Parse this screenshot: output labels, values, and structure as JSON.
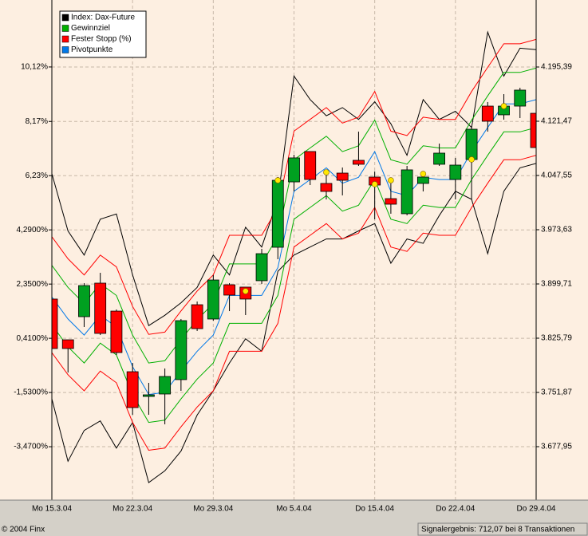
{
  "chart_data": {
    "type": "candlestick",
    "categories": [
      "Mo 15.3.04",
      null,
      null,
      null,
      null,
      "Mo 22.3.04",
      null,
      null,
      null,
      null,
      "Mo 29.3.04",
      null,
      null,
      null,
      null,
      "Mo 5.4.04",
      null,
      null,
      null,
      null,
      "Do 15.4.04",
      null,
      null,
      null,
      null,
      "Do 22.4.04",
      null,
      null,
      null,
      null,
      "Do 29.4.04"
    ],
    "ylim": [
      -5.381,
      12.516
    ],
    "yticks": [
      {
        "value": 10.12,
        "label": "10,12%"
      },
      {
        "value": 8.17,
        "label": "8,17%"
      },
      {
        "value": 6.23,
        "label": "6,23%"
      },
      {
        "value": 4.29,
        "label": "4,2900%"
      },
      {
        "value": 2.35,
        "label": "2,3500%"
      },
      {
        "value": 0.41,
        "label": "0,4100%"
      },
      {
        "value": -1.53,
        "label": "-1,5300%"
      },
      {
        "value": -3.47,
        "label": "-3,4700%"
      }
    ],
    "y2lim": [
      3605.1,
      4286.7
    ],
    "y2ticks": [
      {
        "value": 4195.39,
        "label": "4.195,39"
      },
      {
        "value": 4121.47,
        "label": "4.121,47"
      },
      {
        "value": 4047.55,
        "label": "4.047,55"
      },
      {
        "value": 3973.63,
        "label": "3.973,63"
      },
      {
        "value": 3899.71,
        "label": "3.899,71"
      },
      {
        "value": 3825.79,
        "label": "3.825,79"
      },
      {
        "value": 3751.87,
        "label": "3.751,87"
      },
      {
        "value": 3677.95,
        "label": "3.677,95"
      }
    ],
    "grid": true,
    "legend": "top-left",
    "ohlc": {
      "axis": "y2",
      "up_color": "#00a020",
      "down_color": "#ff0000",
      "open": [
        3879.1,
        3823.6,
        3855.1,
        3900.8,
        3862.7,
        3780.1,
        3746.4,
        3749.7,
        3769.3,
        3871.4,
        3851.9,
        3898.6,
        3895.4,
        3904.1,
        3949.7,
        4038.8,
        4080.2,
        4036.7,
        4050.8,
        4068.2,
        4045.4,
        4016.0,
        3995.4,
        4036.7,
        4062.8,
        4042.1,
        4069.3,
        4142.1,
        4130.2,
        4142.1,
        4132.3
      ],
      "high": [
        3884.5,
        3823.6,
        3900.8,
        3914.9,
        3864.9,
        3792.1,
        3764.9,
        3784.5,
        3851.9,
        3875.8,
        3911.7,
        3900.8,
        3895.4,
        3947.5,
        4045.4,
        4075.8,
        4080.2,
        4053.0,
        4058.4,
        4107.3,
        4053.0,
        4036.7,
        4060.6,
        4053.0,
        4091.0,
        4071.5,
        4114.9,
        4147.6,
        4158.4,
        4167.1,
        4134.5
      ],
      "low": [
        3803.0,
        3779.0,
        3841.0,
        3830.1,
        3803.0,
        3721.4,
        3721.4,
        3708.4,
        3754.0,
        3835.6,
        3849.7,
        3862.7,
        3857.3,
        3899.7,
        3933.4,
        4025.8,
        4034.5,
        4014.9,
        4020.4,
        4060.6,
        3987.8,
        3995.4,
        3993.2,
        4025.8,
        4060.6,
        4014.9,
        4014.9,
        4107.3,
        4123.6,
        4125.8,
        4074.7
      ],
      "close": [
        3811.7,
        3811.7,
        3897.5,
        3832.3,
        3806.2,
        3731.2,
        3748.6,
        3773.6,
        3849.7,
        3838.8,
        3905.1,
        3884.5,
        3879.1,
        3941.0,
        4041.0,
        4071.5,
        4042.1,
        4025.8,
        4041.0,
        4062.8,
        4034.5,
        4008.4,
        4055.2,
        4045.4,
        4078.0,
        4061.7,
        4110.6,
        4121.5,
        4142.1,
        4163.9,
        4085.6
      ]
    },
    "series": [
      {
        "name": "Index: Dax-Future",
        "color": "#000000",
        "axis": "y2",
        "upper": [
          4050,
          3972,
          3939,
          3988,
          3995,
          3912,
          3843,
          3857,
          3874,
          3895,
          3939,
          3912,
          3977,
          3950,
          4015,
          4183,
          4151,
          4129,
          4140,
          4124,
          4148,
          4118,
          4075,
          4151,
          4124,
          4135,
          4113,
          4243,
          4183,
          4221,
          4219
        ],
        "lower": [
          3743,
          3658,
          3700,
          3713,
          3676,
          3711,
          3629,
          3645,
          3672,
          3721,
          3754,
          3792,
          3825,
          3808,
          3917,
          3939,
          3950,
          3961,
          3961,
          3972,
          3982,
          3928,
          3961,
          3955,
          3993,
          4026,
          4015,
          3941,
          4026,
          4058,
          4064
        ]
      },
      {
        "name": "Gewinnziel",
        "color": "#00b000",
        "axis": "y2",
        "upper": [
          3925,
          3895,
          3873,
          3900,
          3884,
          3830,
          3792,
          3795,
          3824,
          3851,
          3873,
          3927,
          3927,
          3927,
          3965,
          4069,
          4085,
          4101,
          4080,
          4088,
          4123,
          4069,
          4063,
          4088,
          4085,
          4085,
          4123,
          4156,
          4188,
          4188,
          4194
        ],
        "lower": [
          3844,
          3814,
          3792,
          3819,
          3803,
          3749,
          3711,
          3714,
          3743,
          3770,
          3792,
          3846,
          3846,
          3846,
          3884,
          3988,
          4004,
          4020,
          3999,
          4007,
          4042,
          3988,
          3982,
          4007,
          4004,
          4004,
          4042,
          4075,
          4107,
          4107,
          4113
        ]
      },
      {
        "name": "Fester Stopp (%)",
        "color": "#ff0000",
        "axis": "y2",
        "upper": [
          3964,
          3934,
          3912,
          3939,
          3923,
          3869,
          3831,
          3834,
          3863,
          3890,
          3912,
          3966,
          3966,
          3966,
          4004,
          4108,
          4124,
          4140,
          4119,
          4127,
          4162,
          4108,
          4102,
          4127,
          4124,
          4124,
          4162,
          4195,
          4227,
          4227,
          4233
        ],
        "lower": [
          3806,
          3776,
          3754,
          3781,
          3765,
          3711,
          3673,
          3676,
          3705,
          3732,
          3754,
          3808,
          3808,
          3808,
          3846,
          3950,
          3966,
          3982,
          3961,
          3969,
          4004,
          3950,
          3944,
          3969,
          3966,
          3966,
          4004,
          4037,
          4069,
          4069,
          4075
        ]
      },
      {
        "name": "Pivotpunkte",
        "color": "#0078e8",
        "axis": "y2",
        "values": [
          3882,
          3852,
          3830,
          3857,
          3841,
          3787,
          3749,
          3752,
          3781,
          3808,
          3830,
          3884,
          3884,
          3884,
          3922,
          4026,
          4042,
          4058,
          4037,
          4045,
          4080,
          4026,
          4020,
          4045,
          4042,
          4042,
          4080,
          4113,
          4145,
          4145,
          4151
        ]
      }
    ],
    "signals": {
      "color": "#ffe800",
      "axis": "y2",
      "x": [
        12,
        14,
        17,
        20,
        21,
        23,
        26,
        28
      ],
      "values": [
        3889.9,
        4041.0,
        4051.9,
        4035.6,
        4041.0,
        4049.7,
        4069.3,
        4142.1
      ]
    },
    "footer_left": "© 2004 Finx",
    "footer_right": "Signalergebnis: 712,07 bei 8 Transaktionen"
  }
}
